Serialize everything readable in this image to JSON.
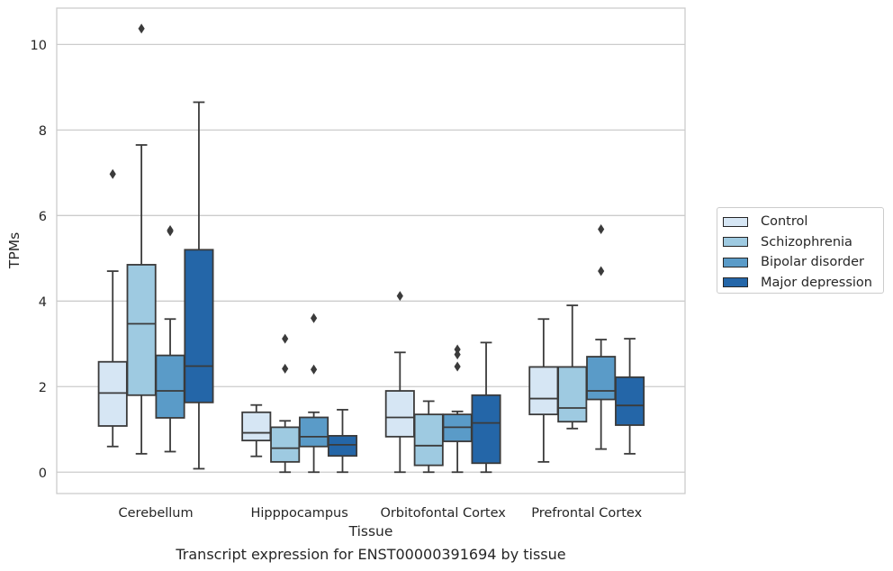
{
  "chart_data": {
    "type": "box",
    "caption": "Transcript expression for ENST00000391694 by tissue",
    "xlabel": "Tissue",
    "ylabel": "TPMs",
    "ylim": [
      -0.5,
      10.85
    ],
    "yticks": [
      0,
      2,
      4,
      6,
      8,
      10
    ],
    "grid": true,
    "legend_position": "right, outside plot",
    "categories": [
      "Cerebellum",
      "Hipppocampus",
      "Orbitofontal Cortex",
      "Prefrontal Cortex"
    ],
    "series": [
      {
        "name": "Control",
        "color": "#d6e6f4",
        "boxes": [
          {
            "whislo": 0.6,
            "q1": 1.08,
            "med": 1.85,
            "q3": 2.58,
            "whishi": 4.7,
            "fliers": [
              6.97
            ]
          },
          {
            "whislo": 0.37,
            "q1": 0.74,
            "med": 0.92,
            "q3": 1.4,
            "whishi": 1.57,
            "fliers": []
          },
          {
            "whislo": 0.0,
            "q1": 0.83,
            "med": 1.28,
            "q3": 1.9,
            "whishi": 2.8,
            "fliers": [
              4.12
            ]
          },
          {
            "whislo": 0.24,
            "q1": 1.35,
            "med": 1.72,
            "q3": 2.46,
            "whishi": 3.58,
            "fliers": []
          }
        ]
      },
      {
        "name": "Schizophrenia",
        "color": "#9ecae1",
        "boxes": [
          {
            "whislo": 0.43,
            "q1": 1.8,
            "med": 3.47,
            "q3": 4.85,
            "whishi": 7.65,
            "fliers": [
              10.37
            ]
          },
          {
            "whislo": 0.0,
            "q1": 0.24,
            "med": 0.56,
            "q3": 1.05,
            "whishi": 1.2,
            "fliers": [
              2.42,
              3.12
            ]
          },
          {
            "whislo": 0.0,
            "q1": 0.16,
            "med": 0.62,
            "q3": 1.35,
            "whishi": 1.66,
            "fliers": []
          },
          {
            "whislo": 1.02,
            "q1": 1.18,
            "med": 1.5,
            "q3": 2.46,
            "whishi": 3.9,
            "fliers": []
          }
        ]
      },
      {
        "name": "Bipolar disorder",
        "color": "#5a9bc8",
        "boxes": [
          {
            "whislo": 0.48,
            "q1": 1.27,
            "med": 1.9,
            "q3": 2.73,
            "whishi": 3.58,
            "fliers": [
              5.63,
              5.66
            ]
          },
          {
            "whislo": 0.0,
            "q1": 0.6,
            "med": 0.83,
            "q3": 1.28,
            "whishi": 1.4,
            "fliers": [
              2.4,
              3.6
            ]
          },
          {
            "whislo": 0.0,
            "q1": 0.72,
            "med": 1.05,
            "q3": 1.35,
            "whishi": 1.42,
            "fliers": [
              2.47,
              2.75,
              2.87
            ]
          },
          {
            "whislo": 0.54,
            "q1": 1.7,
            "med": 1.9,
            "q3": 2.7,
            "whishi": 3.1,
            "fliers": [
              4.7,
              5.68
            ]
          }
        ]
      },
      {
        "name": "Major depression",
        "color": "#2466a8",
        "boxes": [
          {
            "whislo": 0.08,
            "q1": 1.63,
            "med": 2.48,
            "q3": 5.2,
            "whishi": 8.65,
            "fliers": []
          },
          {
            "whislo": 0.0,
            "q1": 0.38,
            "med": 0.64,
            "q3": 0.85,
            "whishi": 1.46,
            "fliers": []
          },
          {
            "whislo": 0.0,
            "q1": 0.21,
            "med": 1.15,
            "q3": 1.8,
            "whishi": 3.03,
            "fliers": []
          },
          {
            "whislo": 0.43,
            "q1": 1.1,
            "med": 1.56,
            "q3": 2.22,
            "whishi": 3.12,
            "fliers": []
          }
        ]
      }
    ]
  }
}
